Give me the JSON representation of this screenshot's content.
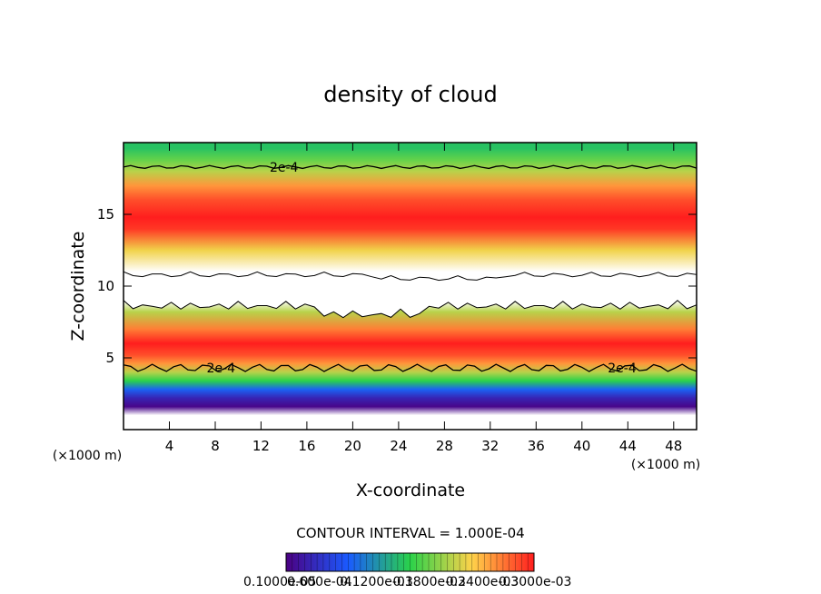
{
  "chart_data": {
    "type": "heatmap",
    "title": "density of cloud",
    "xlabel": "X-coordinate",
    "ylabel": "Z-coordinate",
    "x_unit": "(×1000 m)",
    "x_unit_right": "(×1000 m)",
    "xlim": [
      0,
      50
    ],
    "ylim": [
      0,
      20
    ],
    "x_ticks": [
      4,
      8,
      12,
      16,
      20,
      24,
      28,
      32,
      36,
      40,
      44,
      48
    ],
    "y_ticks": [
      5,
      10,
      15
    ],
    "contour_interval_text": "CONTOUR INTERVAL = 1.000E-04",
    "contour_label": "2e-4",
    "colorbar_text": "0.1000e-05",
    "colorbar_overlap_labels": [
      "0.600e-04",
      "0.1200e-03",
      "0.1800e-03",
      "0.2400e-03",
      "0.3000e-03"
    ],
    "colorbar_range": [
      1e-06,
      0.0003
    ],
    "colors": {
      "low": "#4b0082",
      "mid_low": "#1a5aff",
      "mid": "#2ad24a",
      "mid_high": "#ffd24a",
      "high": "#ff1e1e"
    },
    "profile_z": [
      1.0,
      1.6,
      2.2,
      2.8,
      3.4,
      4.0,
      4.6,
      5.2,
      6.0,
      7.0,
      8.2,
      9.0,
      11.0,
      12.5,
      14.0,
      14.8,
      16.0,
      17.0,
      18.0,
      18.8,
      19.6
    ],
    "profile_value": [
      0.0,
      5e-06,
      3e-05,
      8e-05,
      0.00015,
      0.0002,
      0.00025,
      0.00028,
      0.0003,
      0.00026,
      0.0002,
      0.0,
      0.0,
      0.00022,
      0.00029,
      0.0003,
      0.00028,
      0.00025,
      0.0002,
      0.00017,
      0.00014
    ],
    "clear_layer_z": [
      9.0,
      11.0
    ]
  }
}
